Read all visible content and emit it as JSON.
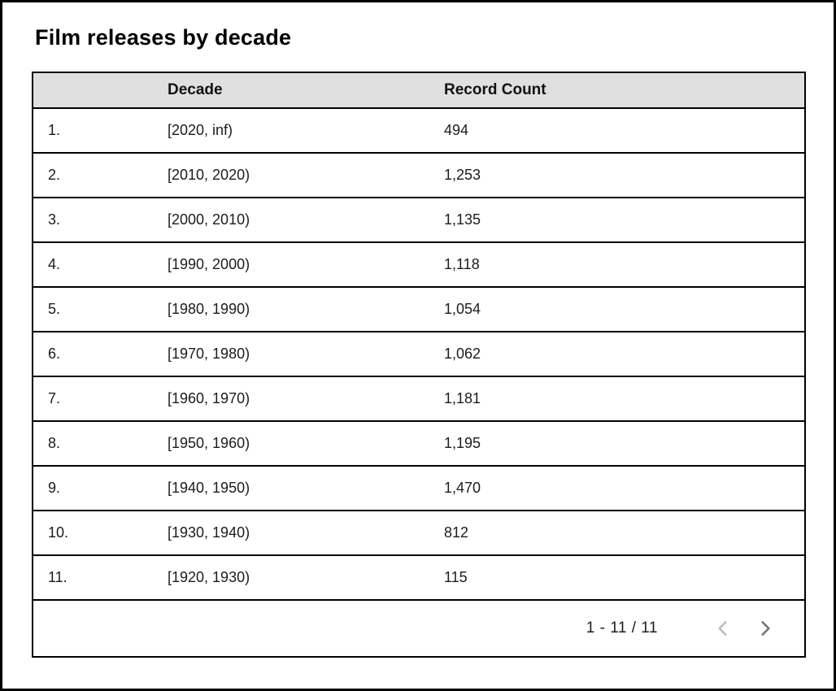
{
  "title": "Film releases by decade",
  "chart_data": {
    "type": "table",
    "title": "Film releases by decade",
    "columns": [
      "",
      "Decade",
      "Record Count"
    ],
    "rows": [
      {
        "index": "1.",
        "decade": "[2020, inf)",
        "count": "494"
      },
      {
        "index": "2.",
        "decade": "[2010, 2020)",
        "count": "1,253"
      },
      {
        "index": "3.",
        "decade": "[2000, 2010)",
        "count": "1,135"
      },
      {
        "index": "4.",
        "decade": "[1990, 2000)",
        "count": "1,118"
      },
      {
        "index": "5.",
        "decade": "[1980, 1990)",
        "count": "1,054"
      },
      {
        "index": "6.",
        "decade": "[1970, 1980)",
        "count": "1,062"
      },
      {
        "index": "7.",
        "decade": "[1960, 1970)",
        "count": "1,181"
      },
      {
        "index": "8.",
        "decade": "[1950, 1960)",
        "count": "1,195"
      },
      {
        "index": "9.",
        "decade": "[1940, 1950)",
        "count": "1,470"
      },
      {
        "index": "10.",
        "decade": "[1930, 1940)",
        "count": "812"
      },
      {
        "index": "11.",
        "decade": "[1920, 1930)",
        "count": "115"
      }
    ],
    "values": [
      494,
      1253,
      1135,
      1118,
      1054,
      1062,
      1181,
      1195,
      1470,
      812,
      115
    ],
    "pagination": {
      "label": "1 - 11 / 11",
      "prev_icon": "chevron-left-icon",
      "next_icon": "chevron-right-icon"
    },
    "colors": {
      "header_bg": "#e0e0e0",
      "border": "#000000",
      "text": "#1c1c1c",
      "prev_chevron": "#bdbdbd",
      "next_chevron": "#757575"
    }
  }
}
